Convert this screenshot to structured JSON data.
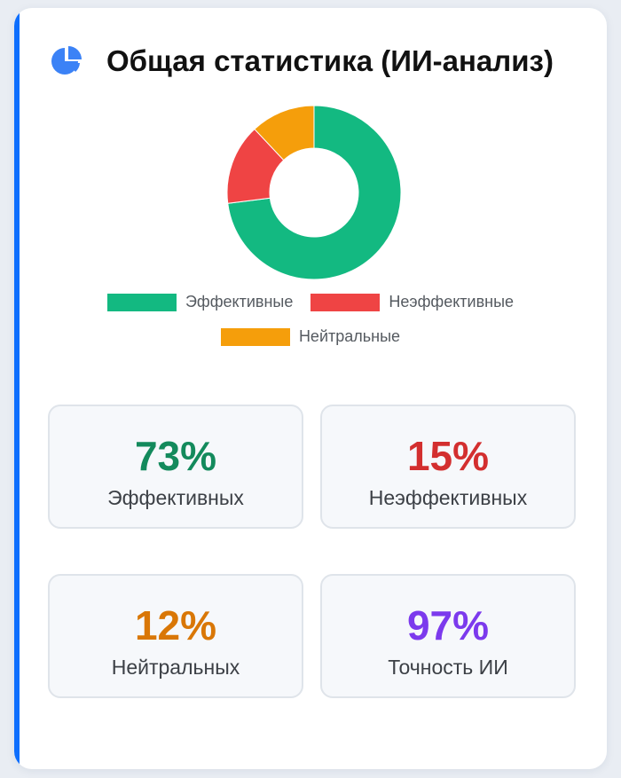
{
  "header": {
    "title": "Общая статистика (ИИ-анализ)",
    "icon": "pie-chart-icon"
  },
  "colors": {
    "accent": "#0d6efd",
    "effective": "#13b981",
    "ineffective": "#ef4444",
    "neutral": "#f59e0b",
    "accuracy": "#7c3aed",
    "effective_text": "#138a5c",
    "ineffective_text": "#d32f2f",
    "neutral_text": "#d97706"
  },
  "chart_data": {
    "type": "pie",
    "title": "",
    "categories": [
      "Эффективные",
      "Неэффективные",
      "Нейтральные"
    ],
    "values": [
      73,
      15,
      12
    ],
    "colors": [
      "#13b981",
      "#ef4444",
      "#f59e0b"
    ],
    "legend": "bottom"
  },
  "stats": [
    {
      "value": "73%",
      "label": "Эффективных"
    },
    {
      "value": "15%",
      "label": "Неэффективных"
    },
    {
      "value": "12%",
      "label": "Нейтральных"
    },
    {
      "value": "97%",
      "label": "Точность ИИ"
    }
  ]
}
